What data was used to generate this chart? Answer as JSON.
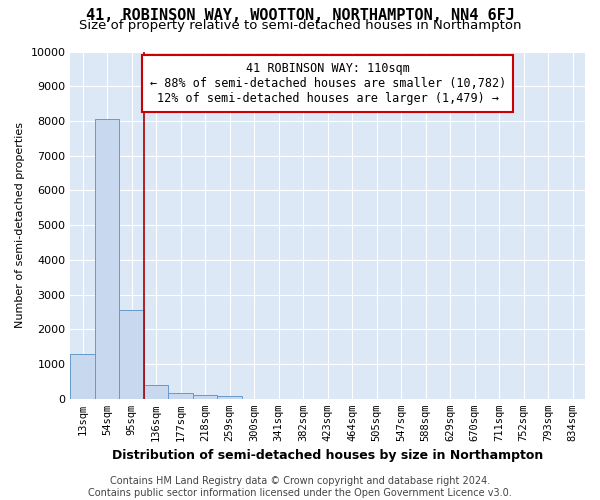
{
  "title": "41, ROBINSON WAY, WOOTTON, NORTHAMPTON, NN4 6FJ",
  "subtitle": "Size of property relative to semi-detached houses in Northampton",
  "xlabel": "Distribution of semi-detached houses by size in Northampton",
  "ylabel": "Number of semi-detached properties",
  "categories": [
    "13sqm",
    "54sqm",
    "95sqm",
    "136sqm",
    "177sqm",
    "218sqm",
    "259sqm",
    "300sqm",
    "341sqm",
    "382sqm",
    "423sqm",
    "464sqm",
    "505sqm",
    "547sqm",
    "588sqm",
    "629sqm",
    "670sqm",
    "711sqm",
    "752sqm",
    "793sqm",
    "834sqm"
  ],
  "values": [
    1300,
    8050,
    2550,
    400,
    175,
    100,
    70,
    0,
    0,
    0,
    0,
    0,
    0,
    0,
    0,
    0,
    0,
    0,
    0,
    0,
    0
  ],
  "bar_color": "#c8d8ee",
  "bar_edge_color": "#6699cc",
  "property_line_x": 2.5,
  "property_line_color": "#aa0000",
  "annotation_line1": "41 ROBINSON WAY: 110sqm",
  "annotation_line2": "← 88% of semi-detached houses are smaller (10,782)",
  "annotation_line3": "12% of semi-detached houses are larger (1,479) →",
  "annotation_box_color": "#ffffff",
  "annotation_box_edge": "#cc0000",
  "ylim": [
    0,
    10000
  ],
  "yticks": [
    0,
    1000,
    2000,
    3000,
    4000,
    5000,
    6000,
    7000,
    8000,
    9000,
    10000
  ],
  "background_color": "#ffffff",
  "plot_background": "#dce8f5",
  "grid_color": "#ffffff",
  "footer": "Contains HM Land Registry data © Crown copyright and database right 2024.\nContains public sector information licensed under the Open Government Licence v3.0.",
  "title_fontsize": 11,
  "subtitle_fontsize": 9.5,
  "footer_fontsize": 7,
  "ylabel_fontsize": 8,
  "xlabel_fontsize": 9
}
